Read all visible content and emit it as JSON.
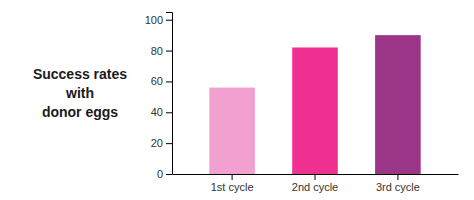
{
  "chart_data": {
    "type": "bar",
    "title": "Success rates\nwith\ndonor eggs",
    "categories": [
      "1st cycle",
      "2nd cycle",
      "3rd cycle"
    ],
    "values": [
      56,
      82,
      90
    ],
    "colors": [
      "#F2A0D0",
      "#F03090",
      "#9B3588"
    ],
    "ylim": [
      0,
      105
    ],
    "yticks": [
      0,
      20,
      40,
      60,
      80,
      100
    ],
    "grid": false
  }
}
